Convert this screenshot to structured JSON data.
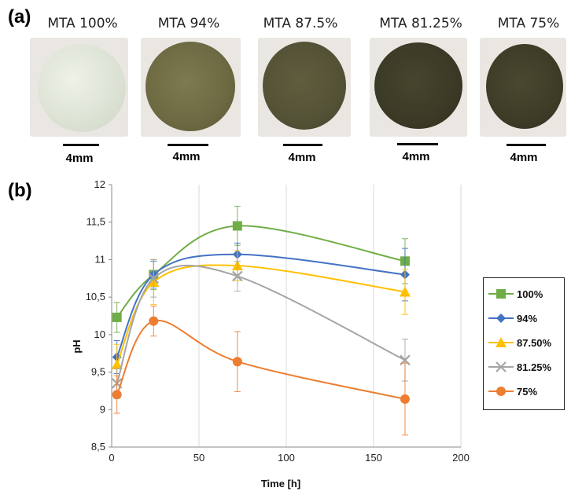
{
  "panels": {
    "a": "(a)",
    "b": "(b)"
  },
  "samples": [
    {
      "title": "MTA 100%",
      "scale": "4mm",
      "color": "#dfe6d7"
    },
    {
      "title": "MTA 94%",
      "scale": "4mm",
      "color": "#6d6942"
    },
    {
      "title": "MTA 87.5%",
      "scale": "4mm",
      "color": "#545236"
    },
    {
      "title": "MTA 81.25%",
      "scale": "4mm",
      "color": "#3a3a26"
    },
    {
      "title": "MTA 75%",
      "scale": "4mm",
      "color": "#3e3c27"
    }
  ],
  "chart_data": {
    "type": "line",
    "xlabel": "Time [h]",
    "ylabel": "pH",
    "xlim": [
      0,
      200
    ],
    "ylim": [
      8.5,
      12
    ],
    "x_ticks": [
      "0",
      "50",
      "100",
      "150",
      "200"
    ],
    "y_ticks": [
      "8,5",
      "9",
      "9,5",
      "10",
      "10,5",
      "11",
      "11,5",
      "12"
    ],
    "grid": "vertical",
    "legend_position": "right",
    "x": [
      3,
      24,
      72,
      168
    ],
    "series": [
      {
        "name": "100%",
        "marker": "square",
        "color": "#70ad47",
        "values": [
          10.23,
          10.8,
          11.45,
          10.98
        ],
        "errors": [
          0.2,
          0.2,
          0.26,
          0.3
        ]
      },
      {
        "name": "94%",
        "marker": "diamond",
        "color": "#4472c4",
        "values": [
          9.7,
          10.8,
          11.07,
          10.8
        ],
        "errors": [
          0.22,
          0.18,
          0.15,
          0.35
        ]
      },
      {
        "name": "87.50%",
        "marker": "triangle",
        "color": "#ffc000",
        "values": [
          9.6,
          10.7,
          10.92,
          10.57
        ],
        "errors": [
          0.27,
          0.3,
          0.2,
          0.3
        ]
      },
      {
        "name": "81.25%",
        "marker": "x",
        "color": "#a5a5a5",
        "values": [
          9.35,
          10.75,
          10.78,
          9.66
        ],
        "errors": [
          0.2,
          0.25,
          0.2,
          0.28
        ]
      },
      {
        "name": "75%",
        "marker": "circle",
        "color": "#ed7d31",
        "values": [
          9.2,
          10.18,
          9.64,
          9.14
        ],
        "errors": [
          0.25,
          0.2,
          0.4,
          0.48
        ]
      }
    ]
  }
}
